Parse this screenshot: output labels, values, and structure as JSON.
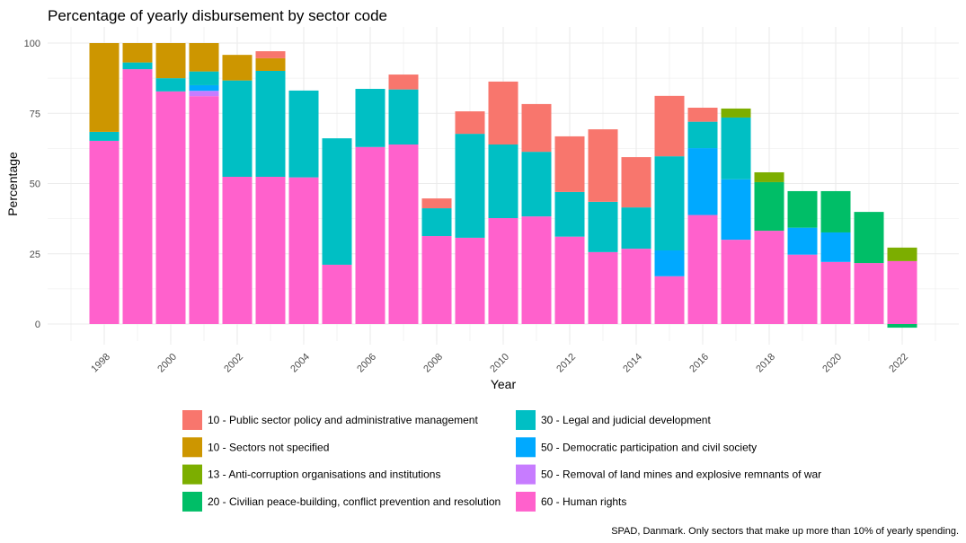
{
  "chart_data": {
    "type": "bar",
    "stacked": true,
    "title": "Percentage of yearly disbursement by sector code",
    "xlabel": "Year",
    "ylabel": "Percentage",
    "caption": "SPAD, Danmark. Only sectors that make up more than 10% of yearly spending.",
    "x": [
      1998,
      1999,
      2000,
      2001,
      2002,
      2003,
      2004,
      2005,
      2006,
      2007,
      2008,
      2009,
      2010,
      2011,
      2012,
      2013,
      2014,
      2015,
      2016,
      2017,
      2018,
      2019,
      2020,
      2021,
      2022
    ],
    "x_ticks": [
      "1998",
      "2000",
      "2002",
      "2004",
      "2006",
      "2008",
      "2010",
      "2012",
      "2014",
      "2016",
      "2018",
      "2020",
      "2022"
    ],
    "y_ticks": [
      "0",
      "25",
      "50",
      "75",
      "100"
    ],
    "ylim": [
      -6,
      105
    ],
    "grid": true,
    "legend_position": "bottom",
    "series": [
      {
        "name": "10 - Public sector policy and administrative management",
        "color": "#F8766D",
        "values": [
          0,
          0,
          0,
          0,
          0,
          2.5,
          0,
          0,
          0,
          5.3,
          3.5,
          8.0,
          22.4,
          17.0,
          19.8,
          25.8,
          17.9,
          21.5,
          5.0,
          0,
          0,
          0,
          0,
          0,
          0
        ]
      },
      {
        "name": "10 - Sectors not specified",
        "color": "#CD9600",
        "values": [
          31.6,
          6.9,
          12.5,
          10.1,
          9.1,
          4.5,
          0,
          0,
          0,
          0,
          0,
          0,
          0,
          0,
          0,
          0,
          0,
          0,
          0,
          0,
          0,
          0,
          0,
          0,
          0
        ]
      },
      {
        "name": "13 - Anti-corruption organisations and institutions",
        "color": "#7CAE00",
        "values": [
          0,
          0,
          0,
          0,
          0,
          0,
          0,
          0,
          0,
          0,
          0,
          0,
          0,
          0,
          0,
          0,
          0,
          0,
          0,
          3.2,
          3.5,
          0,
          0,
          0,
          4.8
        ]
      },
      {
        "name": "20 - Civilian peace-building, conflict prevention and resolution",
        "color": "#00BE67",
        "values": [
          0,
          0,
          0,
          0,
          0,
          0,
          0,
          0,
          0,
          0,
          0,
          0,
          0,
          0,
          0,
          0,
          0,
          0,
          0,
          0,
          17.3,
          13.0,
          14.7,
          18.2,
          -1.3
        ]
      },
      {
        "name": "30 - Legal and judicial development",
        "color": "#00BFC4",
        "values": [
          3.2,
          2.4,
          4.7,
          4.9,
          34.3,
          37.7,
          30.9,
          45.0,
          20.7,
          19.6,
          9.9,
          37.0,
          26.2,
          23.0,
          15.9,
          17.9,
          14.7,
          33.5,
          9.4,
          22.0,
          0,
          0,
          0,
          0,
          0
        ]
      },
      {
        "name": "50 - Democratic participation and civil society",
        "color": "#00A9FF",
        "values": [
          0,
          0,
          0,
          2.0,
          0,
          0,
          0,
          0,
          0,
          0,
          0,
          0,
          0,
          0,
          0,
          0,
          0,
          9.2,
          23.8,
          21.5,
          0,
          9.6,
          10.5,
          0,
          0
        ]
      },
      {
        "name": "50 - Removal of land mines and explosive remnants of war",
        "color": "#C77CFF",
        "values": [
          0,
          0,
          0,
          1.9,
          0,
          0,
          0,
          0,
          0,
          0,
          0,
          0,
          0,
          0,
          0,
          0,
          0,
          0,
          0,
          0,
          0,
          0,
          0,
          0,
          0
        ]
      },
      {
        "name": "60 - Human rights",
        "color": "#FF61CC",
        "values": [
          65.2,
          90.7,
          82.8,
          81.1,
          52.4,
          52.4,
          52.2,
          21.1,
          63.0,
          63.9,
          31.3,
          30.7,
          37.7,
          38.3,
          31.1,
          25.6,
          26.8,
          17.0,
          38.8,
          30.0,
          33.2,
          24.7,
          22.1,
          21.7,
          22.4
        ]
      }
    ]
  }
}
